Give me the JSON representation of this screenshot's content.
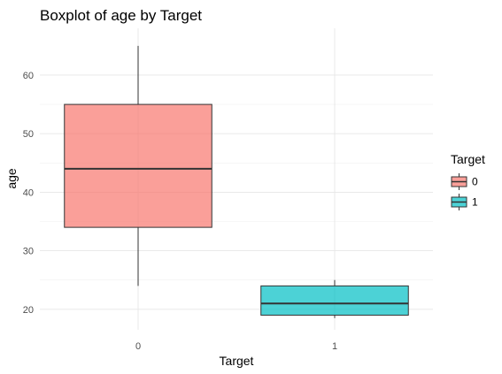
{
  "chart_data": {
    "type": "boxplot",
    "title": "Boxplot of age by Target",
    "xlabel": "Target",
    "ylabel": "age",
    "categories": [
      "0",
      "1"
    ],
    "ylim": [
      16.5,
      68
    ],
    "yticks": [
      20,
      30,
      40,
      50,
      60
    ],
    "grid": true,
    "legend": {
      "title": "Target",
      "position": "right",
      "entries": [
        "0",
        "1"
      ]
    },
    "boxes": [
      {
        "category": "0",
        "min": 24,
        "q1": 34,
        "median": 44,
        "q3": 55,
        "max": 65,
        "color": "#F8766D"
      },
      {
        "category": "1",
        "min": 18.5,
        "q1": 19,
        "median": 21,
        "q3": 24,
        "max": 25,
        "color": "#00BFC4"
      }
    ]
  }
}
